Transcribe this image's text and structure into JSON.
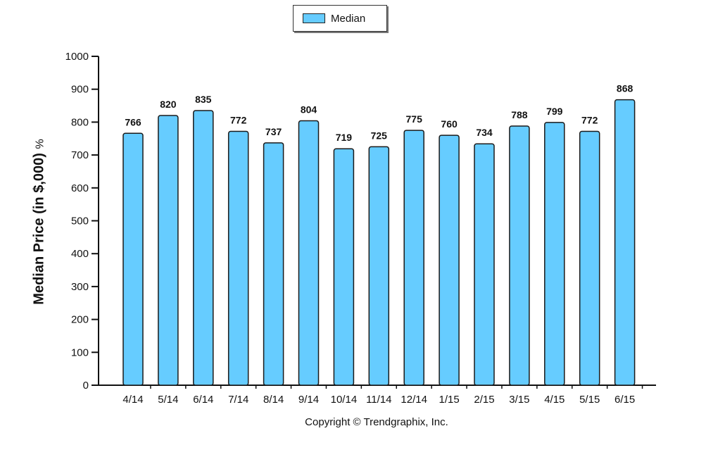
{
  "legend": {
    "label": "Median"
  },
  "colors": {
    "bar": "#66ccff",
    "bar_border": "#1a1a1a",
    "axis": "#111111"
  },
  "y_axis_title": {
    "main": "Median Price (in $,000)",
    "suffix": "%"
  },
  "footer": {
    "copyright": "Copyright © Trendgraphix, Inc."
  },
  "chart_data": {
    "type": "bar",
    "categories": [
      "4/14",
      "5/14",
      "6/14",
      "7/14",
      "8/14",
      "9/14",
      "10/14",
      "11/14",
      "12/14",
      "1/15",
      "2/15",
      "3/15",
      "4/15",
      "5/15",
      "6/15"
    ],
    "series": [
      {
        "name": "Median",
        "values": [
          766,
          820,
          835,
          772,
          737,
          804,
          719,
          725,
          775,
          760,
          734,
          788,
          799,
          772,
          868
        ]
      }
    ],
    "ylabel": "Median Price (in $,000) %",
    "ylim": [
      0,
      1000
    ],
    "yticks": [
      0,
      100,
      200,
      300,
      400,
      500,
      600,
      700,
      800,
      900,
      1000
    ],
    "data_labels": true,
    "grid": false,
    "legend_position": "top-center"
  }
}
